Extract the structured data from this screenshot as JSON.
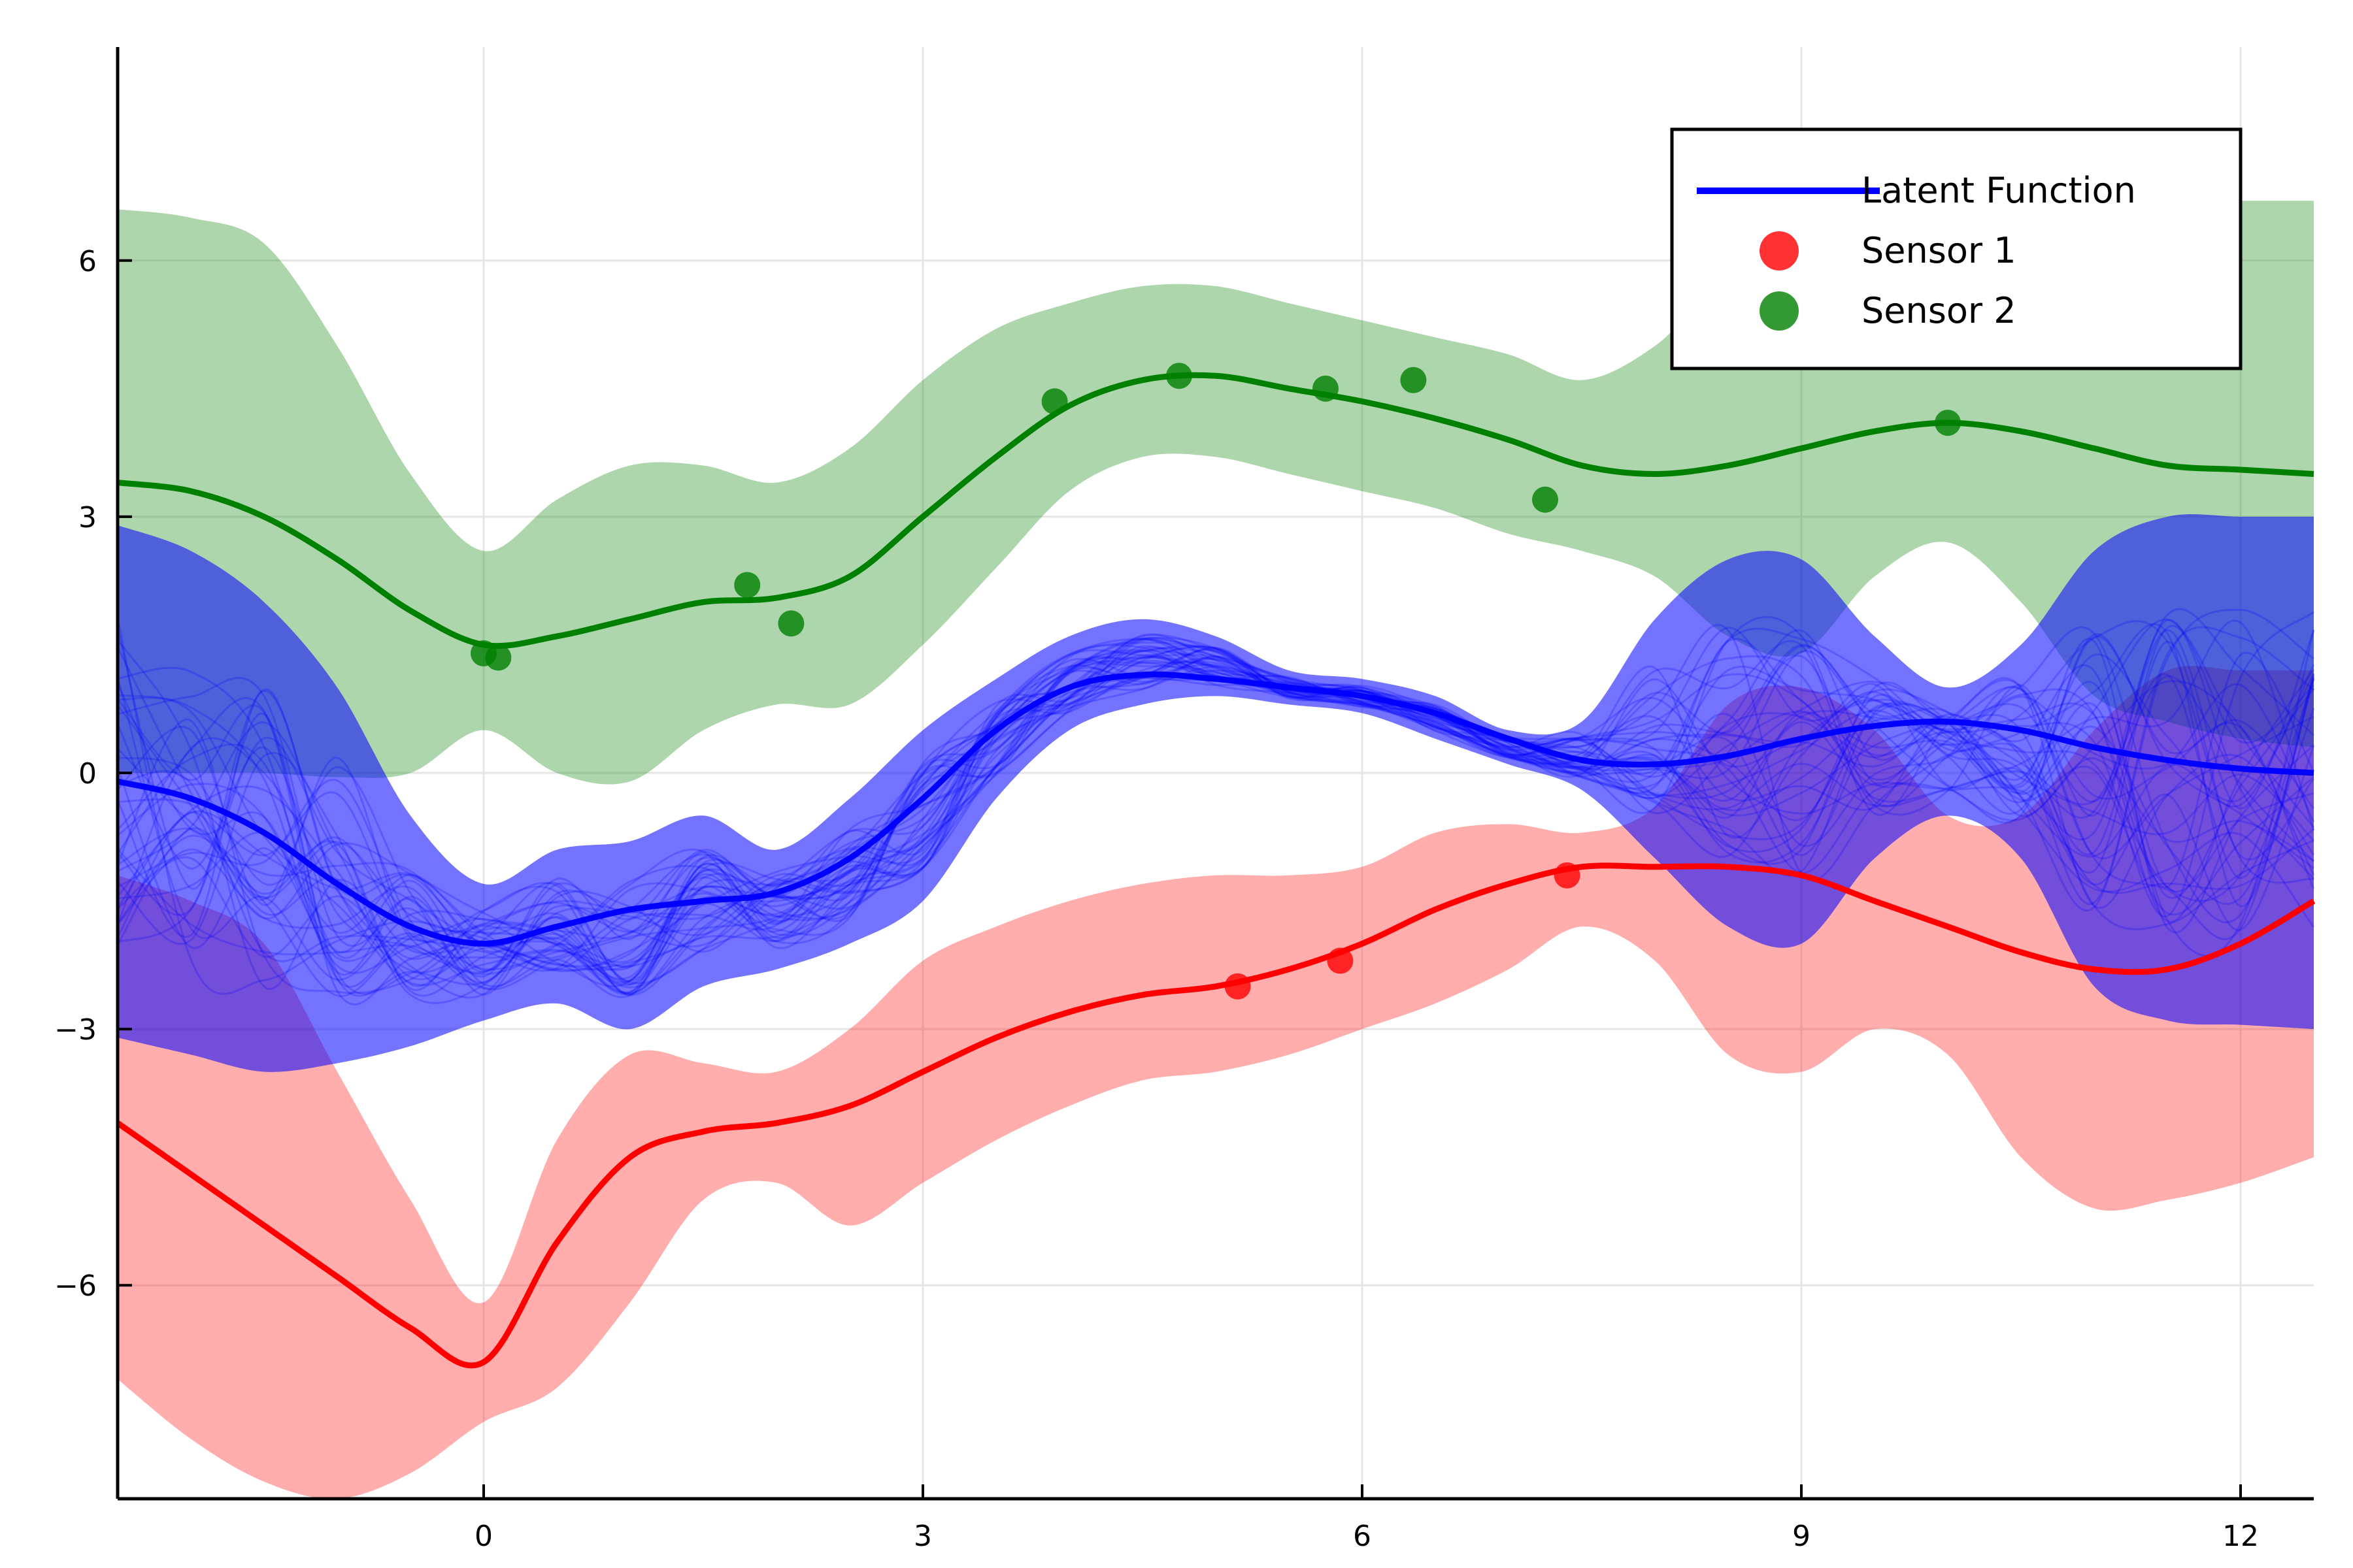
{
  "chart_data": {
    "type": "line",
    "title": "",
    "xlabel": "",
    "ylabel": "",
    "xlim": [
      -2.5,
      12.5
    ],
    "ylim": [
      -8.5,
      8.5
    ],
    "xticks": [
      0,
      3,
      6,
      9,
      12
    ],
    "yticks": [
      -6,
      -3,
      0,
      3,
      6
    ],
    "xtick_labels": [
      "0",
      "3",
      "6",
      "9",
      "12"
    ],
    "ytick_labels": [
      "−6",
      "−3",
      "0",
      "3",
      "6"
    ],
    "grid": true,
    "legend_position": "top-right",
    "series": [
      {
        "name": "Latent Function",
        "kind": "line",
        "color": "#0000ff",
        "x": [
          -2.5,
          -2,
          -1.5,
          -1,
          -0.5,
          0,
          0.5,
          1,
          1.5,
          2,
          2.5,
          3,
          3.5,
          4,
          4.5,
          5,
          5.5,
          6,
          6.5,
          7,
          7.5,
          8,
          8.5,
          9,
          9.5,
          10,
          10.5,
          11,
          11.5,
          12,
          12.5
        ],
        "y": [
          -0.1,
          -0.3,
          -0.7,
          -1.3,
          -1.8,
          -2.0,
          -1.8,
          -1.6,
          -1.5,
          -1.4,
          -1.0,
          -0.3,
          0.5,
          1.0,
          1.15,
          1.1,
          1.0,
          0.9,
          0.7,
          0.4,
          0.15,
          0.1,
          0.2,
          0.4,
          0.55,
          0.6,
          0.5,
          0.3,
          0.15,
          0.05,
          0.0
        ],
        "band_upper": [
          2.9,
          2.6,
          2.0,
          1.0,
          -0.5,
          -1.3,
          -0.9,
          -0.8,
          -0.5,
          -0.9,
          -0.3,
          0.5,
          1.1,
          1.6,
          1.8,
          1.6,
          1.2,
          1.1,
          0.9,
          0.5,
          0.6,
          1.8,
          2.5,
          2.5,
          1.6,
          1.0,
          1.5,
          2.6,
          3.0,
          3.0,
          3.0
        ],
        "band_lower": [
          -3.1,
          -3.3,
          -3.5,
          -3.4,
          -3.2,
          -2.9,
          -2.7,
          -3.0,
          -2.5,
          -2.3,
          -2.0,
          -1.5,
          -0.3,
          0.5,
          0.8,
          0.9,
          0.8,
          0.7,
          0.4,
          0.1,
          -0.2,
          -1.0,
          -1.8,
          -2.0,
          -1.0,
          -0.5,
          -1.0,
          -2.5,
          -2.9,
          -2.95,
          -3.0
        ]
      },
      {
        "name": "Sensor 1",
        "kind": "line_with_points",
        "color": "#ff0000",
        "x": [
          -2.5,
          -2,
          -1.5,
          -1,
          -0.5,
          0,
          0.5,
          1,
          1.5,
          2,
          2.5,
          3,
          3.5,
          4,
          4.5,
          5,
          5.5,
          6,
          6.5,
          7,
          7.5,
          8,
          8.5,
          9,
          9.5,
          10,
          10.5,
          11,
          11.5,
          12,
          12.5
        ],
        "y": [
          -4.1,
          -4.7,
          -5.3,
          -5.9,
          -6.5,
          -6.9,
          -5.5,
          -4.5,
          -4.2,
          -4.1,
          -3.9,
          -3.5,
          -3.1,
          -2.8,
          -2.6,
          -2.5,
          -2.3,
          -2.0,
          -1.6,
          -1.3,
          -1.1,
          -1.1,
          -1.1,
          -1.2,
          -1.5,
          -1.8,
          -2.1,
          -2.3,
          -2.3,
          -2.0,
          -1.5
        ],
        "band_upper": [
          -1.2,
          -1.5,
          -2.0,
          -3.5,
          -5.0,
          -6.2,
          -4.3,
          -3.3,
          -3.4,
          -3.5,
          -3.0,
          -2.2,
          -1.8,
          -1.5,
          -1.3,
          -1.2,
          -1.2,
          -1.1,
          -0.7,
          -0.6,
          -0.7,
          -0.4,
          0.8,
          1.0,
          0.5,
          -0.5,
          -0.5,
          0.5,
          1.2,
          1.2,
          1.2
        ],
        "band_lower": [
          -7.1,
          -7.8,
          -8.3,
          -8.5,
          -8.2,
          -7.6,
          -7.2,
          -6.2,
          -5.0,
          -4.8,
          -5.3,
          -4.8,
          -4.3,
          -3.9,
          -3.6,
          -3.5,
          -3.3,
          -3.0,
          -2.7,
          -2.3,
          -1.8,
          -2.2,
          -3.3,
          -3.5,
          -3.0,
          -3.3,
          -4.5,
          -5.1,
          -5.0,
          -4.8,
          -4.5
        ],
        "points": [
          [
            5.15,
            -2.5
          ],
          [
            5.85,
            -2.2
          ],
          [
            7.4,
            -1.2
          ]
        ]
      },
      {
        "name": "Sensor 2",
        "kind": "line_with_points",
        "color": "#008000",
        "x": [
          -2.5,
          -2,
          -1.5,
          -1,
          -0.5,
          0,
          0.5,
          1,
          1.5,
          2,
          2.5,
          3,
          3.5,
          4,
          4.5,
          5,
          5.5,
          6,
          6.5,
          7,
          7.5,
          8,
          8.5,
          9,
          9.5,
          10,
          10.5,
          11,
          11.5,
          12,
          12.5
        ],
        "y": [
          3.4,
          3.3,
          3.0,
          2.5,
          1.9,
          1.5,
          1.6,
          1.8,
          2.0,
          2.05,
          2.3,
          3.0,
          3.7,
          4.3,
          4.6,
          4.65,
          4.5,
          4.35,
          4.15,
          3.9,
          3.6,
          3.5,
          3.6,
          3.8,
          4.0,
          4.1,
          4.0,
          3.8,
          3.6,
          3.55,
          3.5
        ],
        "band_upper": [
          6.6,
          6.5,
          6.2,
          5.0,
          3.5,
          2.6,
          3.2,
          3.6,
          3.6,
          3.4,
          3.8,
          4.6,
          5.2,
          5.5,
          5.7,
          5.7,
          5.5,
          5.3,
          5.1,
          4.9,
          4.6,
          5.0,
          5.8,
          6.0,
          5.6,
          5.8,
          6.4,
          6.7,
          6.7,
          6.7,
          6.7
        ],
        "band_lower": [
          0.0,
          0.0,
          0.0,
          -0.05,
          0.0,
          0.5,
          0.0,
          -0.1,
          0.5,
          0.8,
          0.8,
          1.5,
          2.4,
          3.3,
          3.7,
          3.7,
          3.5,
          3.3,
          3.1,
          2.8,
          2.6,
          2.3,
          1.6,
          1.4,
          2.3,
          2.7,
          2.0,
          0.9,
          0.6,
          0.4,
          0.3
        ],
        "points": [
          [
            0.0,
            1.4
          ],
          [
            0.1,
            1.35
          ],
          [
            1.8,
            2.2
          ],
          [
            2.1,
            1.75
          ],
          [
            3.9,
            4.35
          ],
          [
            4.75,
            4.65
          ],
          [
            5.75,
            4.5
          ],
          [
            6.35,
            4.6
          ],
          [
            7.25,
            3.2
          ],
          [
            10.0,
            4.1
          ]
        ]
      }
    ]
  }
}
